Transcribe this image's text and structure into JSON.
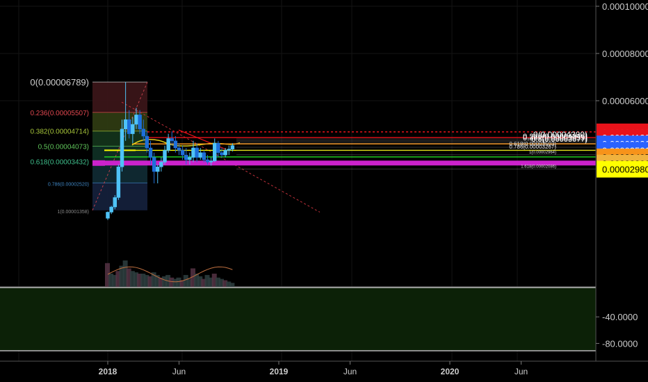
{
  "chart_data": {
    "type": "candlestick",
    "price_axis": {
      "min": 1e-05,
      "max": 0.0001,
      "ticks": [
        "0.00010000",
        "0.00008000",
        "0.00006000"
      ],
      "tick_values": [
        0.0001,
        8e-05,
        6e-05
      ],
      "badges": [
        {
          "text": "0.00004680",
          "value": 4.68e-05,
          "color": "#e8121a",
          "text_color": "#ffffff"
        },
        {
          "text": "0.00004130",
          "value": 4.44e-05,
          "color": "#e8121a",
          "text_color": "#ffffff"
        },
        {
          "text": "0.00003921",
          "value": 4.17e-05,
          "color": "#2962ff",
          "text_color": "#ffffff"
        },
        {
          "text": "0.00003521",
          "value": 3.9e-05,
          "color": "#2962ff",
          "text_color": "#ffffff"
        },
        {
          "text": "0.00003495",
          "value": 3.62e-05,
          "color": "#f7931a",
          "text_color": "#000000"
        },
        {
          "text": "0.00003206",
          "value": 3.36e-05,
          "color": "#f0b23e",
          "text_color": "#000000"
        },
        {
          "text": "0.00002980",
          "value": 3.1e-05,
          "color": "#ffff00",
          "text_color": "#000000"
        }
      ]
    },
    "oscillator_axis": {
      "ticks": [
        "-40.0000",
        "-80.0000"
      ],
      "tick_values": [
        -40,
        -80
      ],
      "min": -90,
      "max": 0
    },
    "time_axis": {
      "labels": [
        "2018",
        "Jun",
        "2019",
        "Jun",
        "2020",
        "Jun"
      ],
      "months_from_start": [
        0,
        5,
        12,
        17,
        24,
        29
      ]
    },
    "fib_left": {
      "levels": [
        {
          "label": "0(0.00006789)",
          "value": 6.789e-05,
          "color": "#cfcfcf",
          "zone": "#3a1518"
        },
        {
          "label": "0.236(0.00005507)",
          "value": 5.507e-05,
          "color": "#e0474f",
          "zone": "#2e3a12"
        },
        {
          "label": "0.382(0.00004714)",
          "value": 4.714e-05,
          "color": "#a6c43a",
          "zone": "#13331a"
        },
        {
          "label": "0.5(0.00004073)",
          "value": 4.073e-05,
          "color": "#5fc45a",
          "zone": "#0f2f24"
        },
        {
          "label": "0.618(0.00003432)",
          "value": 3.432e-05,
          "color": "#3fbf8c",
          "zone": "#102a33"
        },
        {
          "label": "0.786(0.00002520)",
          "value": 2.52e-05,
          "color": "#3f86c4",
          "zone": "#14203a"
        },
        {
          "label": "1(0.00001358)",
          "value": 1.358e-05,
          "color": "#8a8a8a",
          "zone": ""
        }
      ]
    },
    "fib_right": {
      "levels": [
        {
          "label": "0(0.00004380)",
          "value": 4.38e-05
        },
        {
          "label": "0.236(0.00004046)",
          "value": 4.32e-05
        },
        {
          "label": "0.382(0.00003839)",
          "value": 4.26e-05
        },
        {
          "label": "0.5(0.00003677)",
          "value": 4.2e-05
        },
        {
          "label": "0.618(0.00003503)",
          "value": 4.03e-05
        },
        {
          "label": "0.786(0.00003267)",
          "value": 3.91e-05
        },
        {
          "label": "1(0.00002964)",
          "value": 3.71e-05
        },
        {
          "label": "1.618(0.00002086)",
          "value": 3.11e-05
        }
      ]
    },
    "horizontal_lines": [
      {
        "value": 4.68e-05,
        "color": "#e8121a",
        "style": "dashed"
      },
      {
        "value": 4.44e-05,
        "color": "#e8121a",
        "style": "solid"
      },
      {
        "value": 4.17e-05,
        "color": "#f7931a",
        "style": "solid"
      },
      {
        "value": 3.9e-05,
        "color": "#ffff00",
        "style": "solid"
      },
      {
        "value": 3.62e-05,
        "color": "#22dd22",
        "style": "solid"
      },
      {
        "value": 3.36e-05,
        "color": "#cc22cc",
        "style": "thick"
      }
    ],
    "candles": [
      [
        0.0,
        1.02e-05,
        1.31e-05,
        9.5e-06,
        1.28e-05
      ],
      [
        0.25,
        1.28e-05,
        1.55e-05,
        1.2e-05,
        1.5e-05
      ],
      [
        0.5,
        1.5e-05,
        2e-05,
        1.4e-05,
        1.9e-05
      ],
      [
        0.75,
        1.9e-05,
        3.3e-05,
        1.8e-05,
        3.2e-05
      ],
      [
        1.0,
        3.2e-05,
        5.2e-05,
        3e-05,
        4.8e-05
      ],
      [
        1.25,
        4.8e-05,
        6.79e-05,
        4.3e-05,
        5.2e-05
      ],
      [
        1.5,
        5.2e-05,
        5.6e-05,
        4.4e-05,
        4.6e-05
      ],
      [
        1.75,
        4.6e-05,
        5.3e-05,
        4.2e-05,
        5e-05
      ],
      [
        2.0,
        5e-05,
        5.7e-05,
        4.8e-05,
        5.4e-05
      ],
      [
        2.25,
        5.4e-05,
        5.6e-05,
        4.6e-05,
        4.8e-05
      ],
      [
        2.5,
        4.8e-05,
        5.2e-05,
        4.3e-05,
        4.5e-05
      ],
      [
        2.75,
        4.5e-05,
        4.7e-05,
        3.8e-05,
        4e-05
      ],
      [
        3.0,
        4e-05,
        4.3e-05,
        3.3e-05,
        3.6e-05
      ],
      [
        3.25,
        3.6e-05,
        3.8e-05,
        2.5e-05,
        3e-05
      ],
      [
        3.5,
        3e-05,
        3.3e-05,
        2.5e-05,
        3.2e-05
      ],
      [
        3.75,
        3.2e-05,
        3.6e-05,
        3e-05,
        3.4e-05
      ],
      [
        4.0,
        3.4e-05,
        4.1e-05,
        3.3e-05,
        3.9e-05
      ],
      [
        4.25,
        3.9e-05,
        4.6e-05,
        3.8e-05,
        4.4e-05
      ],
      [
        4.5,
        4.4e-05,
        4.7e-05,
        4.1e-05,
        4.3e-05
      ],
      [
        4.75,
        4.3e-05,
        4.5e-05,
        3.8e-05,
        4e-05
      ],
      [
        5.0,
        4e-05,
        4.2e-05,
        3.7e-05,
        3.9e-05
      ],
      [
        5.25,
        3.9e-05,
        4.1e-05,
        3.5e-05,
        3.7e-05
      ],
      [
        5.5,
        3.7e-05,
        4e-05,
        3.3e-05,
        3.5e-05
      ],
      [
        5.75,
        3.5e-05,
        3.8e-05,
        3.3e-05,
        3.6e-05
      ],
      [
        6.0,
        3.6e-05,
        4.3e-05,
        3.4e-05,
        4e-05
      ],
      [
        6.25,
        4e-05,
        4.2e-05,
        3.4e-05,
        3.6e-05
      ],
      [
        6.5,
        3.6e-05,
        4e-05,
        3.5e-05,
        3.8e-05
      ],
      [
        6.75,
        3.8e-05,
        3.9e-05,
        3.4e-05,
        3.5e-05
      ],
      [
        7.0,
        3.5e-05,
        3.7e-05,
        3.3e-05,
        3.4e-05
      ],
      [
        7.25,
        3.4e-05,
        3.6e-05,
        3.25e-05,
        3.45e-05
      ],
      [
        7.5,
        3.45e-05,
        4.4e-05,
        3.4e-05,
        4.2e-05
      ],
      [
        7.75,
        4.2e-05,
        4.3e-05,
        3.6e-05,
        3.8e-05
      ],
      [
        8.0,
        3.8e-05,
        4e-05,
        3.6e-05,
        3.7e-05
      ],
      [
        8.25,
        3.7e-05,
        4e-05,
        3.6e-05,
        3.9e-05
      ],
      [
        8.5,
        3.9e-05,
        4.1e-05,
        3.7e-05,
        3.95e-05
      ],
      [
        8.75,
        3.95e-05,
        4.2e-05,
        3.85e-05,
        4.1e-05
      ]
    ],
    "volume": [
      [
        0.0,
        0.9
      ],
      [
        0.25,
        0.5
      ],
      [
        0.5,
        0.45
      ],
      [
        0.75,
        0.6
      ],
      [
        1.0,
        0.8
      ],
      [
        1.25,
        1.0
      ],
      [
        1.5,
        0.7
      ],
      [
        1.75,
        0.6
      ],
      [
        2.0,
        0.55
      ],
      [
        2.25,
        0.5
      ],
      [
        2.5,
        0.5
      ],
      [
        2.75,
        0.45
      ],
      [
        3.0,
        0.4
      ],
      [
        3.25,
        0.55
      ],
      [
        3.5,
        0.45
      ],
      [
        3.75,
        0.35
      ],
      [
        4.0,
        0.4
      ],
      [
        4.25,
        0.45
      ],
      [
        4.5,
        0.35
      ],
      [
        4.75,
        0.3
      ],
      [
        5.0,
        0.35
      ],
      [
        5.25,
        0.25
      ],
      [
        5.5,
        0.45
      ],
      [
        5.75,
        0.3
      ],
      [
        6.0,
        0.7
      ],
      [
        6.25,
        0.5
      ],
      [
        6.5,
        0.4
      ],
      [
        6.75,
        0.3
      ],
      [
        7.0,
        0.45
      ],
      [
        7.25,
        0.35
      ],
      [
        7.5,
        0.5
      ],
      [
        7.75,
        0.35
      ],
      [
        8.0,
        0.3
      ],
      [
        8.25,
        0.25
      ],
      [
        8.5,
        0.2
      ],
      [
        8.75,
        0.15
      ]
    ]
  }
}
